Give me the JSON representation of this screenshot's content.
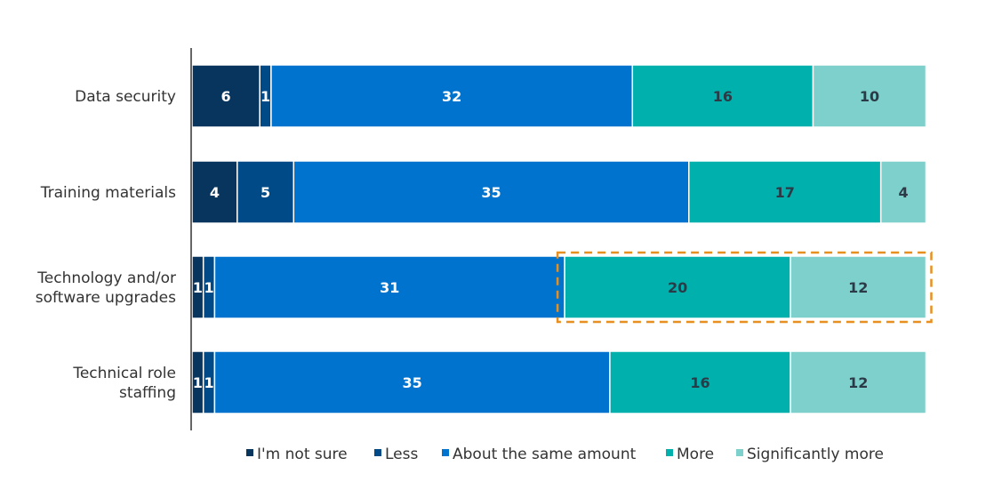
{
  "chart_data": {
    "type": "bar",
    "orientation": "horizontal",
    "stacked": true,
    "categories": [
      [
        "Data security"
      ],
      [
        "Training materials"
      ],
      [
        "Technology and/or",
        "software upgrades"
      ],
      [
        "Technical role",
        "staffing"
      ]
    ],
    "series": [
      {
        "name": "I'm not sure",
        "color": "#08355E",
        "values": [
          6,
          4,
          1,
          1
        ]
      },
      {
        "name": "Less",
        "color": "#004B87",
        "values": [
          1,
          5,
          1,
          1
        ]
      },
      {
        "name": "About the same amount",
        "color": "#0073CE",
        "values": [
          32,
          35,
          31,
          35
        ]
      },
      {
        "name": "More",
        "color": "#00B0AD",
        "values": [
          16,
          17,
          20,
          16
        ]
      },
      {
        "name": "Significantly more",
        "color": "#7ED0CC",
        "values": [
          10,
          4,
          12,
          12
        ]
      }
    ],
    "label_colors": {
      "dark": "#ffffff",
      "light": "#2b3a46"
    },
    "highlight": {
      "category_index": 2,
      "series_from": 3,
      "series_to": 4,
      "color": "#E8901F",
      "style": "dashed"
    },
    "grid": false,
    "legend_position": "bottom"
  }
}
